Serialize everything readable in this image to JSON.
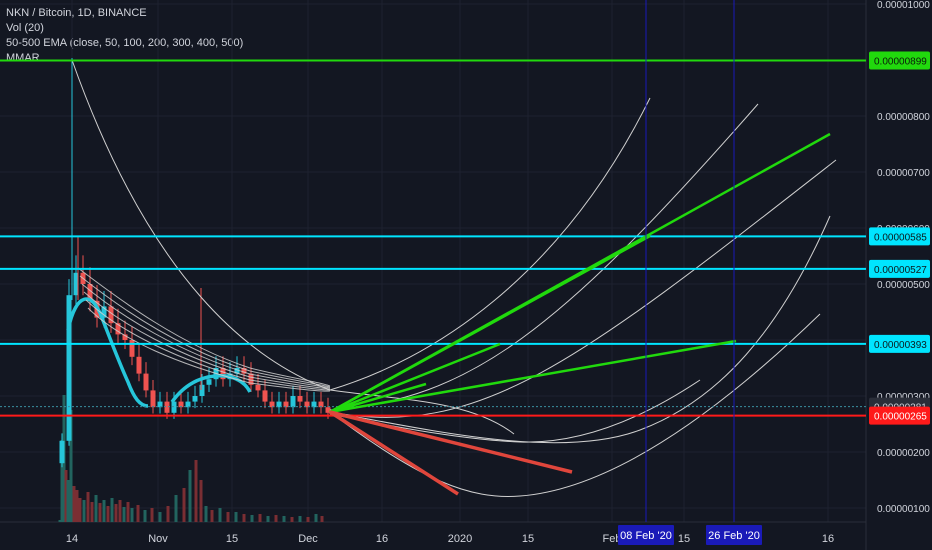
{
  "legend": {
    "symbol": "NKN / Bitcoin, 1D, BINANCE",
    "vol": "Vol (20)",
    "ema": "50-500 EMA (close, 50, 100, 200, 300, 400, 500)",
    "mmar": "MMAR"
  },
  "colors": {
    "background": "#131722",
    "grid": "#1e2230",
    "up": "#26c6da",
    "down": "#ef5350",
    "up_volume": "#22645f",
    "down_volume": "#7a2e33",
    "green_line": "#21d90d",
    "cyan_line": "#00e5ff",
    "red_line": "#ff1a1a",
    "red_projection": "#e0463c",
    "curve": "#d0d0d0",
    "vertical_marker": "#1a1ab8",
    "axis_text": "#d1d4dc",
    "price_tag_dark": "#2a2e39"
  },
  "chart_data": {
    "type": "line",
    "title": "NKN / Bitcoin, 1D, BINANCE",
    "y_axis": {
      "ticks": [
        "0.00001000",
        "0.00000900",
        "0.00000800",
        "0.00000700",
        "0.00000600",
        "0.00000500",
        "0.00000400",
        "0.00000300",
        "0.00000200",
        "0.00000100"
      ],
      "range": [
        8e-07,
        1e-05
      ]
    },
    "x_axis": {
      "ticks": [
        "14",
        "Nov",
        "15",
        "Dec",
        "16",
        "2020",
        "15",
        "Feb",
        "15",
        "16"
      ]
    },
    "candles_close": [
      2.2e-06,
      4.8e-06,
      5.2e-06,
      5e-06,
      4.7e-06,
      4.4e-06,
      4.6e-06,
      4.3e-06,
      4.1e-06,
      4e-06,
      3.7e-06,
      3.4e-06,
      3.1e-06,
      2.8e-06,
      2.9e-06,
      2.7e-06,
      2.9e-06,
      2.8e-06,
      2.9e-06,
      3e-06,
      3.2e-06,
      3.3e-06,
      3.5e-06,
      3.3e-06,
      3.4e-06,
      3.5e-06,
      3.4e-06,
      3.2e-06,
      3.1e-06,
      2.9e-06,
      2.8e-06,
      2.9e-06,
      2.8e-06,
      3e-06,
      2.9e-06,
      2.8e-06,
      2.9e-06,
      2.8e-06,
      2.7e-06
    ],
    "horizontal_levels": [
      {
        "label": "0.00000899",
        "value": 8.99e-06,
        "style": "green"
      },
      {
        "label": "0.00000585",
        "value": 5.85e-06,
        "style": "cyan"
      },
      {
        "label": "0.00000527",
        "value": 5.27e-06,
        "style": "cyan"
      },
      {
        "label": "0.00000393",
        "value": 3.93e-06,
        "style": "cyan"
      },
      {
        "label": "0.00000281",
        "value": 2.81e-06,
        "style": "dotted"
      },
      {
        "label": "0.00000265",
        "value": 2.65e-06,
        "style": "red"
      }
    ],
    "vertical_markers": [
      {
        "label": "08 Feb '20"
      },
      {
        "label": "26 Feb '20"
      }
    ]
  }
}
